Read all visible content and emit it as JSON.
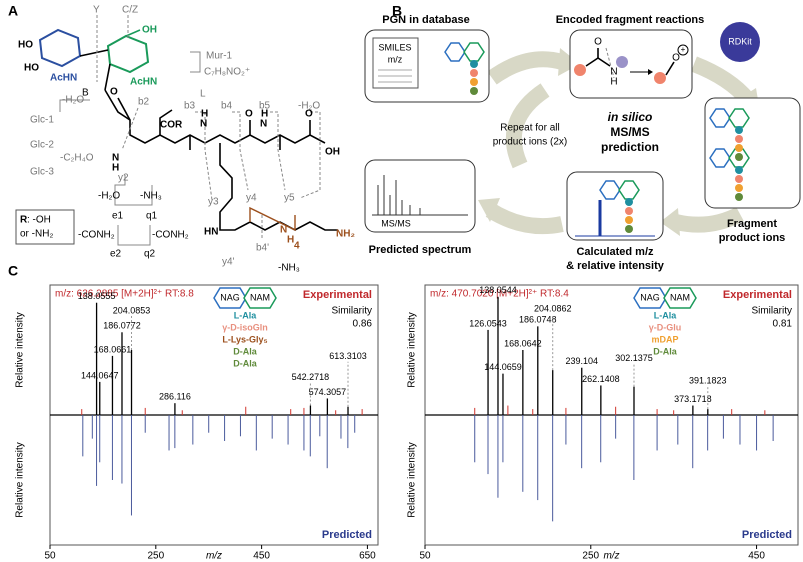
{
  "panel_a": {
    "texts": [
      "A",
      "Y",
      "C/Z",
      "HO",
      "HO",
      "AcHN",
      "OH",
      "AcHN",
      "Mur-1",
      "C₇H₈NO₂⁺",
      "B",
      "-H₂O",
      "Glc-1",
      "Glc-2",
      "-C₂H₄O",
      "Glc-3",
      "b2",
      "COR",
      "L",
      "b3",
      "b4",
      "b5",
      "-H₂O",
      "y2",
      "y3",
      "y4",
      "y5",
      "-H₂O",
      "-NH₃",
      "e1",
      "q1",
      "-CONH₂",
      "-CONH₂",
      "e2",
      "q2",
      "R",
      ": -OH",
      "or -NH₂",
      "b4'",
      "y4'",
      "NH₂",
      "-NH₃",
      "HN",
      "H",
      "N",
      "4",
      "OH",
      "N",
      "H",
      "N",
      "H",
      "N",
      "H",
      "O",
      "O",
      "O"
    ]
  },
  "panel_b": {
    "texts": [
      "B",
      "PGN in database",
      "SMILES",
      "m/z",
      "Encoded fragment reactions",
      "O",
      "N",
      "H",
      "O",
      "RDKit",
      "in silico",
      "MS/MS",
      "prediction",
      "Repeat for all",
      "product ions (2x)",
      "Fragment",
      "product ions",
      "MS/MS",
      "Predicted spectrum",
      "Calculated m/z",
      "& relative intensity",
      "+"
    ]
  },
  "panel_c": {
    "label": "C",
    "spectra": [
      {
        "header": "m/z: 626.2885 [M+2H]²⁺ RT:8.8",
        "experimental_label": "Experimental",
        "similarity_label": "Similarity",
        "similarity": 0.86,
        "glycan": [
          "NAG",
          "NAM"
        ],
        "stem": [
          {
            "text": "L-Ala",
            "color": "#1f8fa0"
          },
          {
            "text": "γ-D-isoGln",
            "color": "#e8907f"
          },
          {
            "text": "L-Lys-Gly₅",
            "color": "#9c4f1c"
          },
          {
            "text": "D-Ala",
            "color": "#5f8a3a"
          },
          {
            "text": "D-Ala",
            "color": "#5f8a3a"
          }
        ],
        "predicted_label": "Predicted",
        "y_label_top": "Relative intensity",
        "y_label_bottom": "Relative intensity",
        "x_label": "m/z",
        "xlim": [
          50,
          670
        ],
        "xticks": [
          50,
          250,
          450,
          650
        ],
        "ylim": [
          -110,
          110
        ],
        "experimental": {
          "color": "#000000",
          "peaks": [
            {
              "mz": 138.0555,
              "intensity": 95
            },
            {
              "mz": 186.0772,
              "intensity": 70
            },
            {
              "mz": 168.0661,
              "intensity": 50
            },
            {
              "mz": 204.0853,
              "intensity": 55
            },
            {
              "mz": 144.0647,
              "intensity": 28
            },
            {
              "mz": 286.116,
              "intensity": 10
            },
            {
              "mz": 574.3057,
              "intensity": 14
            },
            {
              "mz": 542.2718,
              "intensity": 8
            },
            {
              "mz": 613.3103,
              "intensity": 7
            }
          ]
        },
        "experimental_unmatched": {
          "color": "#d0342c",
          "peaks": [
            {
              "mz": 110,
              "intensity": 5
            },
            {
              "mz": 230,
              "intensity": 6
            },
            {
              "mz": 300,
              "intensity": 4
            },
            {
              "mz": 420,
              "intensity": 7
            },
            {
              "mz": 505,
              "intensity": 5
            },
            {
              "mz": 530,
              "intensity": 6
            },
            {
              "mz": 590,
              "intensity": 4
            },
            {
              "mz": 640,
              "intensity": 5
            }
          ]
        },
        "predicted": {
          "color": "#4a5a9c",
          "peaks": [
            {
              "mz": 112,
              "intensity": -35
            },
            {
              "mz": 130,
              "intensity": -20
            },
            {
              "mz": 138,
              "intensity": -60
            },
            {
              "mz": 144,
              "intensity": -40
            },
            {
              "mz": 168,
              "intensity": -55
            },
            {
              "mz": 186,
              "intensity": -58
            },
            {
              "mz": 204,
              "intensity": -85
            },
            {
              "mz": 230,
              "intensity": -15
            },
            {
              "mz": 275,
              "intensity": -30
            },
            {
              "mz": 286,
              "intensity": -28
            },
            {
              "mz": 320,
              "intensity": -25
            },
            {
              "mz": 350,
              "intensity": -15
            },
            {
              "mz": 380,
              "intensity": -22
            },
            {
              "mz": 410,
              "intensity": -18
            },
            {
              "mz": 440,
              "intensity": -30
            },
            {
              "mz": 470,
              "intensity": -20
            },
            {
              "mz": 500,
              "intensity": -25
            },
            {
              "mz": 530,
              "intensity": -30
            },
            {
              "mz": 542,
              "intensity": -35
            },
            {
              "mz": 560,
              "intensity": -18
            },
            {
              "mz": 574,
              "intensity": -45
            },
            {
              "mz": 600,
              "intensity": -20
            },
            {
              "mz": 613,
              "intensity": -28
            },
            {
              "mz": 626,
              "intensity": -15
            }
          ]
        }
      },
      {
        "header": "m/z: 470.7020 [M+2H]²⁺ RT:8.4",
        "experimental_label": "Experimental",
        "similarity_label": "Similarity",
        "similarity": 0.81,
        "glycan": [
          "NAG",
          "NAM"
        ],
        "stem": [
          {
            "text": "L-Ala",
            "color": "#1f8fa0"
          },
          {
            "text": "γ-D-Glu",
            "color": "#e8907f"
          },
          {
            "text": "mDAP",
            "color": "#f0a030"
          },
          {
            "text": "D-Ala",
            "color": "#5f8a3a"
          }
        ],
        "predicted_label": "Predicted",
        "y_label_top": "Relative intensity",
        "y_label_bottom": "Relative intensity",
        "x_label": "m/z",
        "xlim": [
          50,
          500
        ],
        "xticks": [
          50,
          250,
          450
        ],
        "ylim": [
          -110,
          110
        ],
        "experimental": {
          "color": "#000000",
          "peaks": [
            {
              "mz": 138.0544,
              "intensity": 100
            },
            {
              "mz": 126.0543,
              "intensity": 72
            },
            {
              "mz": 186.0748,
              "intensity": 75
            },
            {
              "mz": 168.0642,
              "intensity": 55
            },
            {
              "mz": 239.104,
              "intensity": 40
            },
            {
              "mz": 262.1408,
              "intensity": 25
            },
            {
              "mz": 144.0659,
              "intensity": 35
            },
            {
              "mz": 204.0862,
              "intensity": 38
            },
            {
              "mz": 302.1375,
              "intensity": 24
            },
            {
              "mz": 373.1718,
              "intensity": 8
            },
            {
              "mz": 391.1823,
              "intensity": 5
            }
          ]
        },
        "experimental_unmatched": {
          "color": "#d0342c",
          "peaks": [
            {
              "mz": 110,
              "intensity": 6
            },
            {
              "mz": 150,
              "intensity": 8
            },
            {
              "mz": 180,
              "intensity": 5
            },
            {
              "mz": 220,
              "intensity": 6
            },
            {
              "mz": 280,
              "intensity": 7
            },
            {
              "mz": 330,
              "intensity": 5
            },
            {
              "mz": 350,
              "intensity": 4
            },
            {
              "mz": 420,
              "intensity": 5
            },
            {
              "mz": 460,
              "intensity": 4
            }
          ]
        },
        "predicted": {
          "color": "#4a5a9c",
          "peaks": [
            {
              "mz": 110,
              "intensity": -40
            },
            {
              "mz": 126,
              "intensity": -50
            },
            {
              "mz": 138,
              "intensity": -70
            },
            {
              "mz": 144,
              "intensity": -40
            },
            {
              "mz": 168,
              "intensity": -65
            },
            {
              "mz": 186,
              "intensity": -72
            },
            {
              "mz": 204,
              "intensity": -90
            },
            {
              "mz": 220,
              "intensity": -25
            },
            {
              "mz": 239,
              "intensity": -45
            },
            {
              "mz": 262,
              "intensity": -40
            },
            {
              "mz": 280,
              "intensity": -20
            },
            {
              "mz": 302,
              "intensity": -55
            },
            {
              "mz": 330,
              "intensity": -30
            },
            {
              "mz": 355,
              "intensity": -25
            },
            {
              "mz": 373,
              "intensity": -45
            },
            {
              "mz": 391,
              "intensity": -30
            },
            {
              "mz": 410,
              "intensity": -20
            },
            {
              "mz": 430,
              "intensity": -25
            },
            {
              "mz": 450,
              "intensity": -30
            },
            {
              "mz": 470,
              "intensity": -22
            }
          ]
        }
      }
    ]
  }
}
